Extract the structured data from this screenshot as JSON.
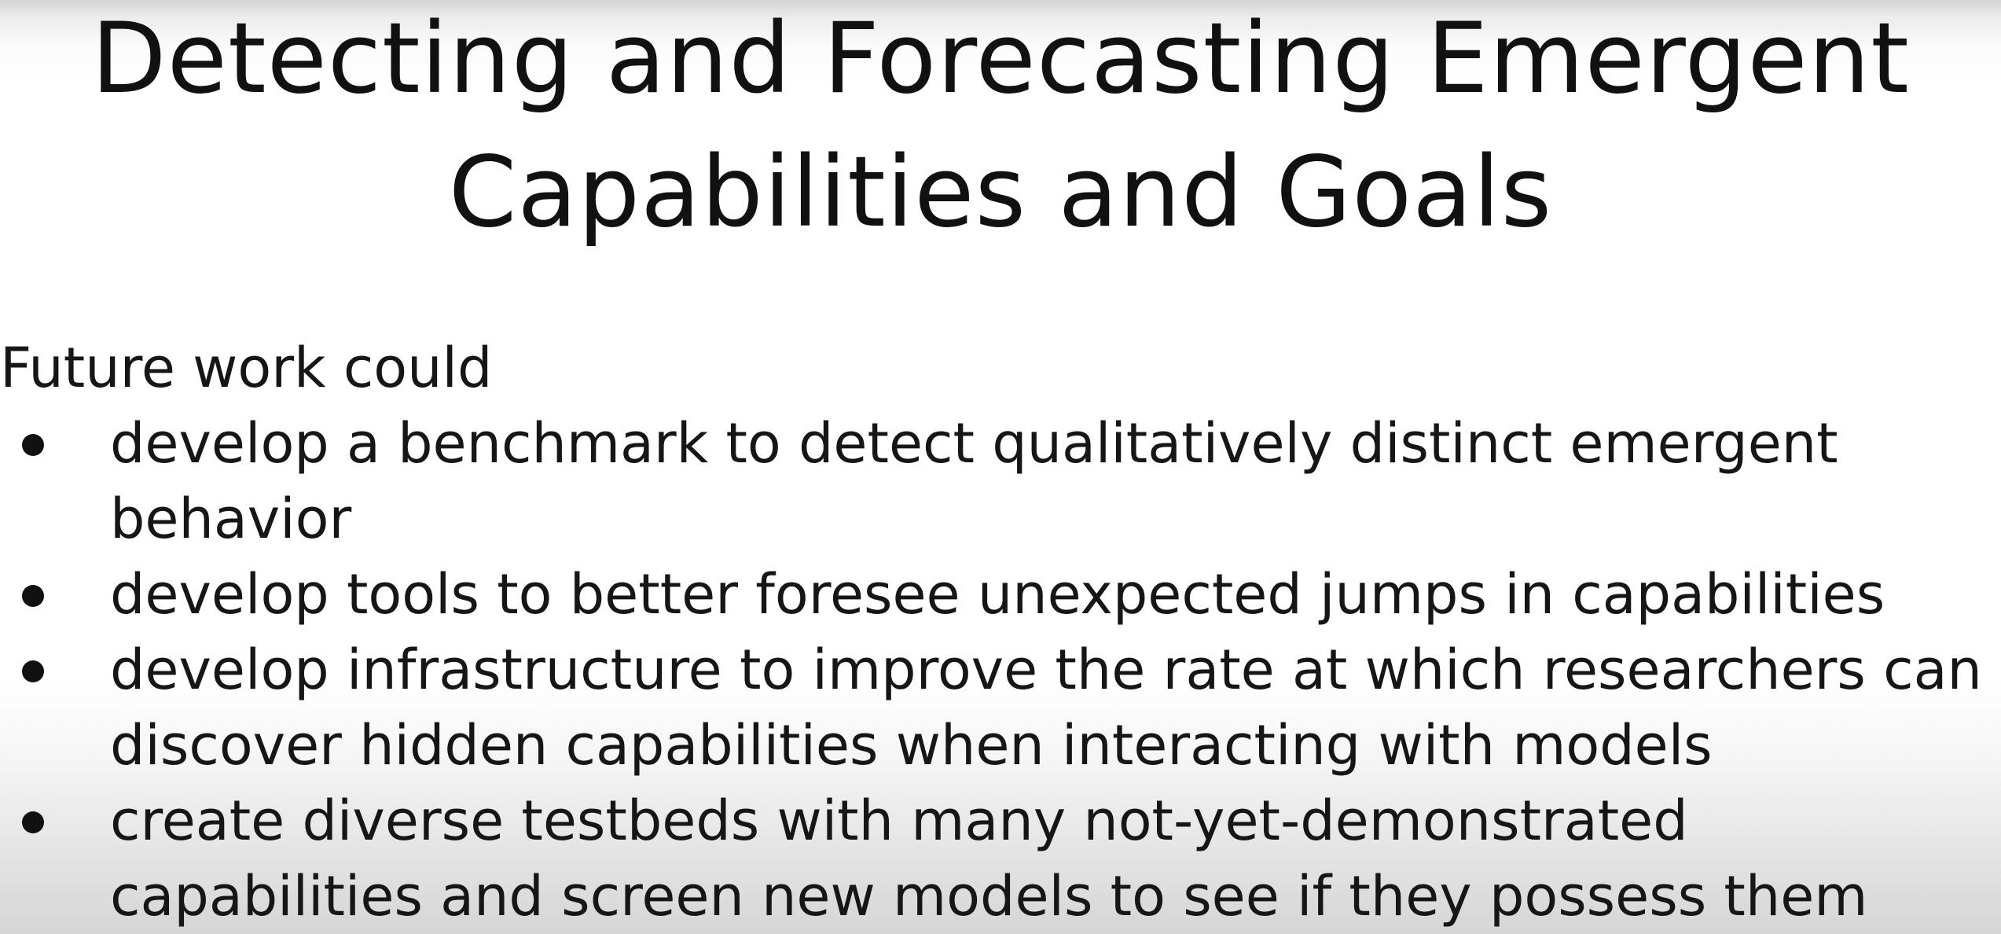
{
  "slide": {
    "title_lines": [
      "Detecting and Forecasting Emergent",
      "Capabilities and Goals"
    ],
    "intro": "Future work could",
    "bullets": [
      {
        "lines": [
          "develop a benchmark to detect qualitatively distinct emergent",
          "behavior"
        ]
      },
      {
        "lines": [
          "develop tools to better foresee unexpected jumps in capabilities"
        ]
      },
      {
        "lines": [
          "develop infrastructure to improve the rate at which researchers can",
          "discover hidden capabilities when interacting with models"
        ]
      },
      {
        "lines": [
          "create diverse testbeds with many not-yet-demonstrated",
          "capabilities and screen new models to see if they possess them"
        ]
      }
    ]
  }
}
